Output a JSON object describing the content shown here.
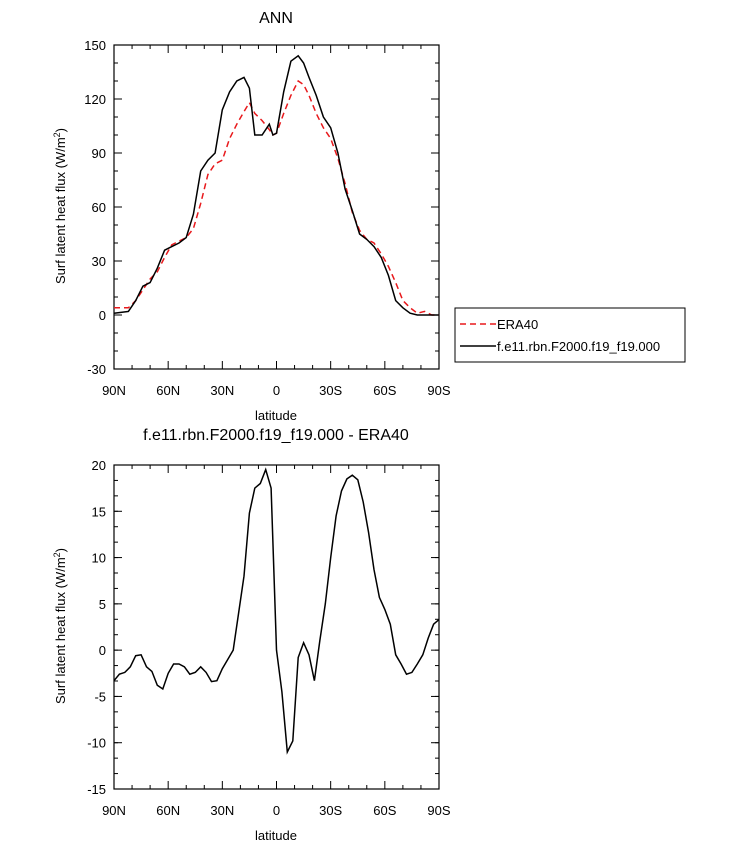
{
  "chart_data": [
    {
      "type": "line",
      "title": "ANN",
      "xlabel": "latitude",
      "ylabel": "Surf latent heat flux (W/m²)",
      "ylabel_main": "Surf latent heat flux (W/m",
      "ylabel_sup": "2",
      "ylabel_end": ")",
      "xlim": [
        90,
        -90
      ],
      "ylim": [
        -30,
        150
      ],
      "x_ticks": [
        90,
        60,
        30,
        0,
        -30,
        -60,
        -90
      ],
      "x_tick_labels": [
        "90N",
        "60N",
        "30N",
        "0",
        "30S",
        "60S",
        "90S"
      ],
      "y_ticks": [
        -30,
        0,
        30,
        60,
        90,
        120,
        150
      ],
      "y_tick_labels": [
        "-30",
        "0",
        "30",
        "60",
        "90",
        "120",
        "150"
      ],
      "series": [
        {
          "name": "ERA40",
          "color": "#e8191c",
          "dash": "dashed",
          "x": [
            90,
            82,
            78,
            74,
            70,
            66,
            62,
            58,
            54,
            50,
            46,
            42,
            38,
            34,
            30,
            26,
            22,
            18,
            15,
            12,
            8,
            4,
            2,
            0,
            -4,
            -8,
            -12,
            -15,
            -18,
            -22,
            -26,
            -30,
            -34,
            -38,
            -42,
            -46,
            -50,
            -54,
            -58,
            -62,
            -66,
            -70,
            -74,
            -78,
            -82,
            -86,
            -90
          ],
          "y": [
            4,
            4,
            8,
            14,
            20,
            24,
            32,
            39,
            41,
            43,
            48,
            62,
            78,
            84,
            86,
            98,
            106,
            113,
            118,
            112,
            108,
            103,
            100,
            101,
            112,
            122,
            130,
            128,
            122,
            112,
            104,
            98,
            87,
            73,
            57,
            47,
            42,
            40,
            34,
            27,
            18,
            8,
            4,
            1,
            2,
            0,
            0
          ]
        },
        {
          "name": "f.e11.rbn.F2000.f19_f19.000",
          "color": "#000000",
          "dash": "solid",
          "x": [
            90,
            82,
            78,
            74,
            70,
            66,
            62,
            58,
            54,
            50,
            46,
            42,
            38,
            34,
            30,
            26,
            22,
            18,
            15,
            12,
            8,
            4,
            2,
            0,
            -4,
            -8,
            -12,
            -15,
            -18,
            -22,
            -26,
            -30,
            -34,
            -38,
            -42,
            -46,
            -50,
            -54,
            -58,
            -62,
            -66,
            -70,
            -74,
            -78,
            -82,
            -86,
            -90
          ],
          "y": [
            1,
            2,
            8,
            16,
            18,
            26,
            36,
            38,
            40,
            43,
            56,
            80,
            86,
            90,
            114,
            124,
            130,
            132,
            126,
            100,
            100,
            106,
            100,
            101,
            124,
            141,
            144,
            140,
            132,
            122,
            110,
            104,
            90,
            70,
            58,
            45,
            42,
            38,
            32,
            22,
            8,
            4,
            1,
            0,
            0,
            0,
            0
          ]
        }
      ],
      "legend": {
        "position": "right"
      }
    },
    {
      "type": "line",
      "title": "f.e11.rbn.F2000.f19_f19.000 - ERA40",
      "xlabel": "latitude",
      "ylabel": "Surf latent heat flux (W/m²)",
      "ylabel_main": "Surf latent heat flux (W/m",
      "ylabel_sup": "2",
      "ylabel_end": ")",
      "xlim": [
        90,
        -90
      ],
      "ylim": [
        -15,
        20
      ],
      "x_ticks": [
        90,
        60,
        30,
        0,
        -30,
        -60,
        -90
      ],
      "x_tick_labels": [
        "90N",
        "60N",
        "30N",
        "0",
        "30S",
        "60S",
        "90S"
      ],
      "y_ticks": [
        -15,
        -10,
        -5,
        0,
        5,
        10,
        15,
        20
      ],
      "y_tick_labels": [
        "-15",
        "-10",
        "-5",
        "0",
        "5",
        "10",
        "15",
        "20"
      ],
      "series": [
        {
          "name": "",
          "color": "#000000",
          "dash": "solid",
          "x": [
            90,
            87,
            84,
            81,
            78,
            75,
            72,
            69,
            66,
            63,
            60,
            57,
            54,
            51,
            48,
            45,
            42,
            39,
            36,
            33,
            30,
            27,
            24,
            21,
            18,
            15,
            12,
            9,
            6,
            3,
            0,
            -3,
            -6,
            -9,
            -12,
            -15,
            -18,
            -21,
            -24,
            -27,
            -30,
            -33,
            -36,
            -39,
            -42,
            -45,
            -48,
            -51,
            -54,
            -57,
            -60,
            -63,
            -66,
            -69,
            -72,
            -75,
            -78,
            -81,
            -84,
            -87,
            -90
          ],
          "y": [
            -3.3,
            -2.6,
            -2.4,
            -1.8,
            -0.6,
            -0.5,
            -1.8,
            -2.3,
            -3.8,
            -4.2,
            -2.5,
            -1.5,
            -1.5,
            -1.8,
            -2.6,
            -2.4,
            -1.8,
            -2.4,
            -3.4,
            -3.3,
            -2,
            -1,
            0,
            4,
            8,
            14.8,
            17.5,
            18,
            19.5,
            17.5,
            0,
            -4.5,
            -11,
            -9.8,
            -0.8,
            0.8,
            -0.5,
            -3.3,
            1,
            5,
            10,
            14.5,
            17.2,
            18.5,
            18.9,
            18.4,
            16,
            12.7,
            8.7,
            5.7,
            4.4,
            2.8,
            -0.5,
            -1.5,
            -2.6,
            -2.4,
            -1.5,
            -0.5,
            1.3,
            2.8,
            3.3
          ],
          "x_display_order": "north-to-south"
        }
      ]
    }
  ]
}
